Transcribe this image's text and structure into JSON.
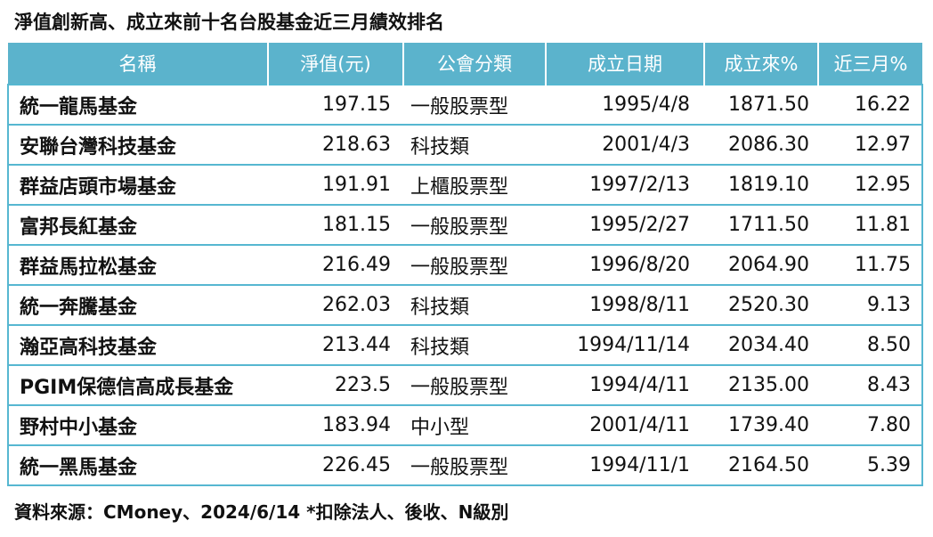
{
  "title": "淨值創新高、成立來前十名台股基金近三月績效排名",
  "table": {
    "headers": [
      "名稱",
      "淨值(元)",
      "公會分類",
      "成立日期",
      "成立來%",
      "近三月%"
    ],
    "rows": [
      [
        "統一龍馬基金",
        "197.15",
        "一般股票型",
        "1995/4/8",
        "1871.50",
        "16.22"
      ],
      [
        "安聯台灣科技基金",
        "218.63",
        "科技類",
        "2001/4/3",
        "2086.30",
        "12.97"
      ],
      [
        "群益店頭市場基金",
        "191.91",
        "上櫃股票型",
        "1997/2/13",
        "1819.10",
        "12.95"
      ],
      [
        "富邦長紅基金",
        "181.15",
        "一般股票型",
        "1995/2/27",
        "1711.50",
        "11.81"
      ],
      [
        "群益馬拉松基金",
        "216.49",
        "一般股票型",
        "1996/8/20",
        "2064.90",
        "11.75"
      ],
      [
        "統一奔騰基金",
        "262.03",
        "科技類",
        "1998/8/11",
        "2520.30",
        "9.13"
      ],
      [
        "瀚亞高科技基金",
        "213.44",
        "科技類",
        "1994/11/14",
        "2034.40",
        "8.50"
      ],
      [
        "PGIM保德信高成長基金",
        "223.5",
        "一般股票型",
        "1994/4/11",
        "2135.00",
        "8.43"
      ],
      [
        "野村中小基金",
        "183.94",
        "中小型",
        "2001/4/11",
        "1739.40",
        "7.80"
      ],
      [
        "統一黑馬基金",
        "226.45",
        "一般股票型",
        "1994/11/1",
        "2164.50",
        "5.39"
      ]
    ]
  },
  "source": "資料來源：CMoney、2024/6/14 *扣除法人、後收、N級別",
  "colors": {
    "header_bg": "#5bb3cc",
    "header_text": "#ffffff",
    "border": "#56b7d1"
  }
}
